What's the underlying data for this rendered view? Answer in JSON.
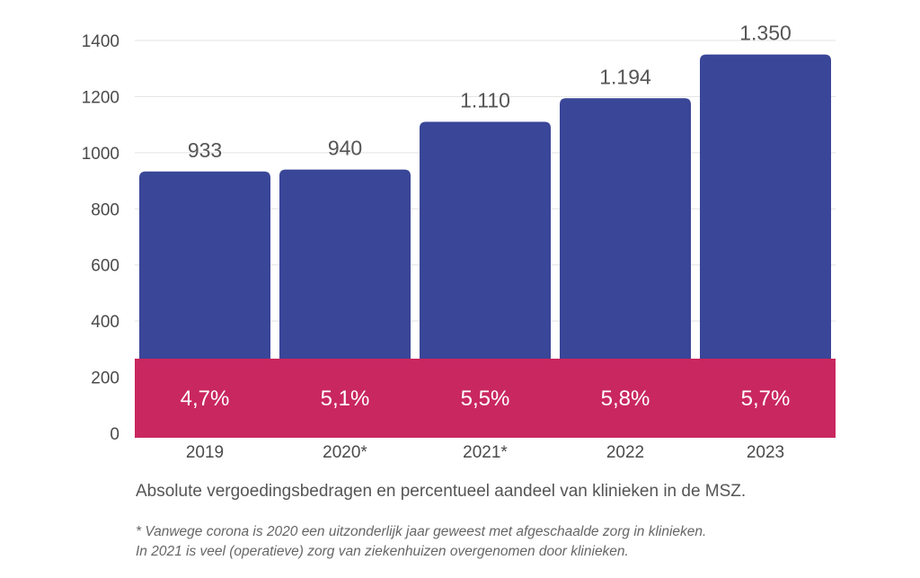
{
  "chart_data": {
    "type": "bar",
    "categories": [
      "2019",
      "2020*",
      "2021*",
      "2022",
      "2023"
    ],
    "values": [
      933,
      940,
      1110,
      1194,
      1350
    ],
    "value_labels": [
      "933",
      "940",
      "1.110",
      "1.194",
      "1.350"
    ],
    "overlay_values": [
      4.7,
      5.1,
      5.5,
      5.8,
      5.7
    ],
    "overlay_labels": [
      "4,7%",
      "5,1%",
      "5,5%",
      "5,8%",
      "5,7%"
    ],
    "yticks": [
      0,
      200,
      400,
      600,
      800,
      1000,
      1200,
      1400
    ],
    "ylim": [
      0,
      1400
    ],
    "grid": true,
    "title": "",
    "xlabel": "",
    "ylabel": ""
  },
  "colors": {
    "bar": "#3a4697",
    "overlay": "#c9275f",
    "grid": "#e3e3e3"
  },
  "caption": "Absolute vergoedingsbedragen en percentueel aandeel van klinieken in de MSZ.",
  "footnotes": [
    "* Vanwege corona is 2020 een uitzonderlijk jaar geweest met afgeschaalde zorg in klinieken.",
    "In 2021 is veel (operatieve) zorg van ziekenhuizen overgenomen door klinieken."
  ]
}
